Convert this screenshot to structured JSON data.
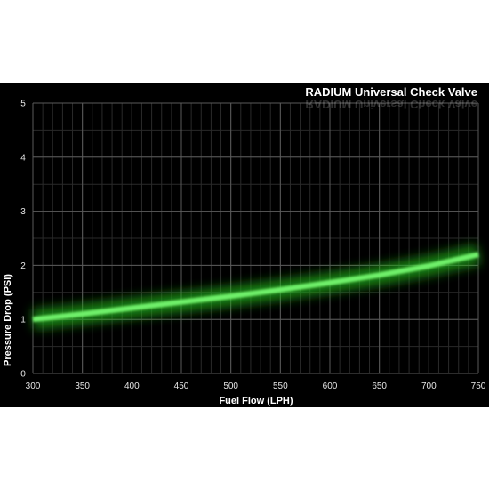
{
  "chart_data": {
    "type": "line",
    "title": "RADIUM Universal Check Valve",
    "xlabel": "Fuel Flow (LPH)",
    "ylabel": "Pressure Drop (PSI)",
    "xlim": [
      300,
      750
    ],
    "ylim": [
      0,
      5
    ],
    "x_ticks": [
      "300",
      "350",
      "400",
      "450",
      "500",
      "550",
      "600",
      "650",
      "700",
      "750"
    ],
    "y_ticks": [
      "0",
      "1",
      "2",
      "3",
      "4",
      "5"
    ],
    "grid": true,
    "series": [
      {
        "x": [
          300,
          350,
          400,
          450,
          500,
          550,
          600,
          650,
          700,
          750
        ],
        "values": [
          1.0,
          1.1,
          1.21,
          1.32,
          1.43,
          1.55,
          1.68,
          1.82,
          1.99,
          2.2
        ]
      }
    ],
    "colors": {
      "background": "#000000",
      "grid_major": "#5a5a5a",
      "grid_minor": "#2a2a2a",
      "line": "#6ff06a",
      "glow": "#1fae1a"
    }
  }
}
